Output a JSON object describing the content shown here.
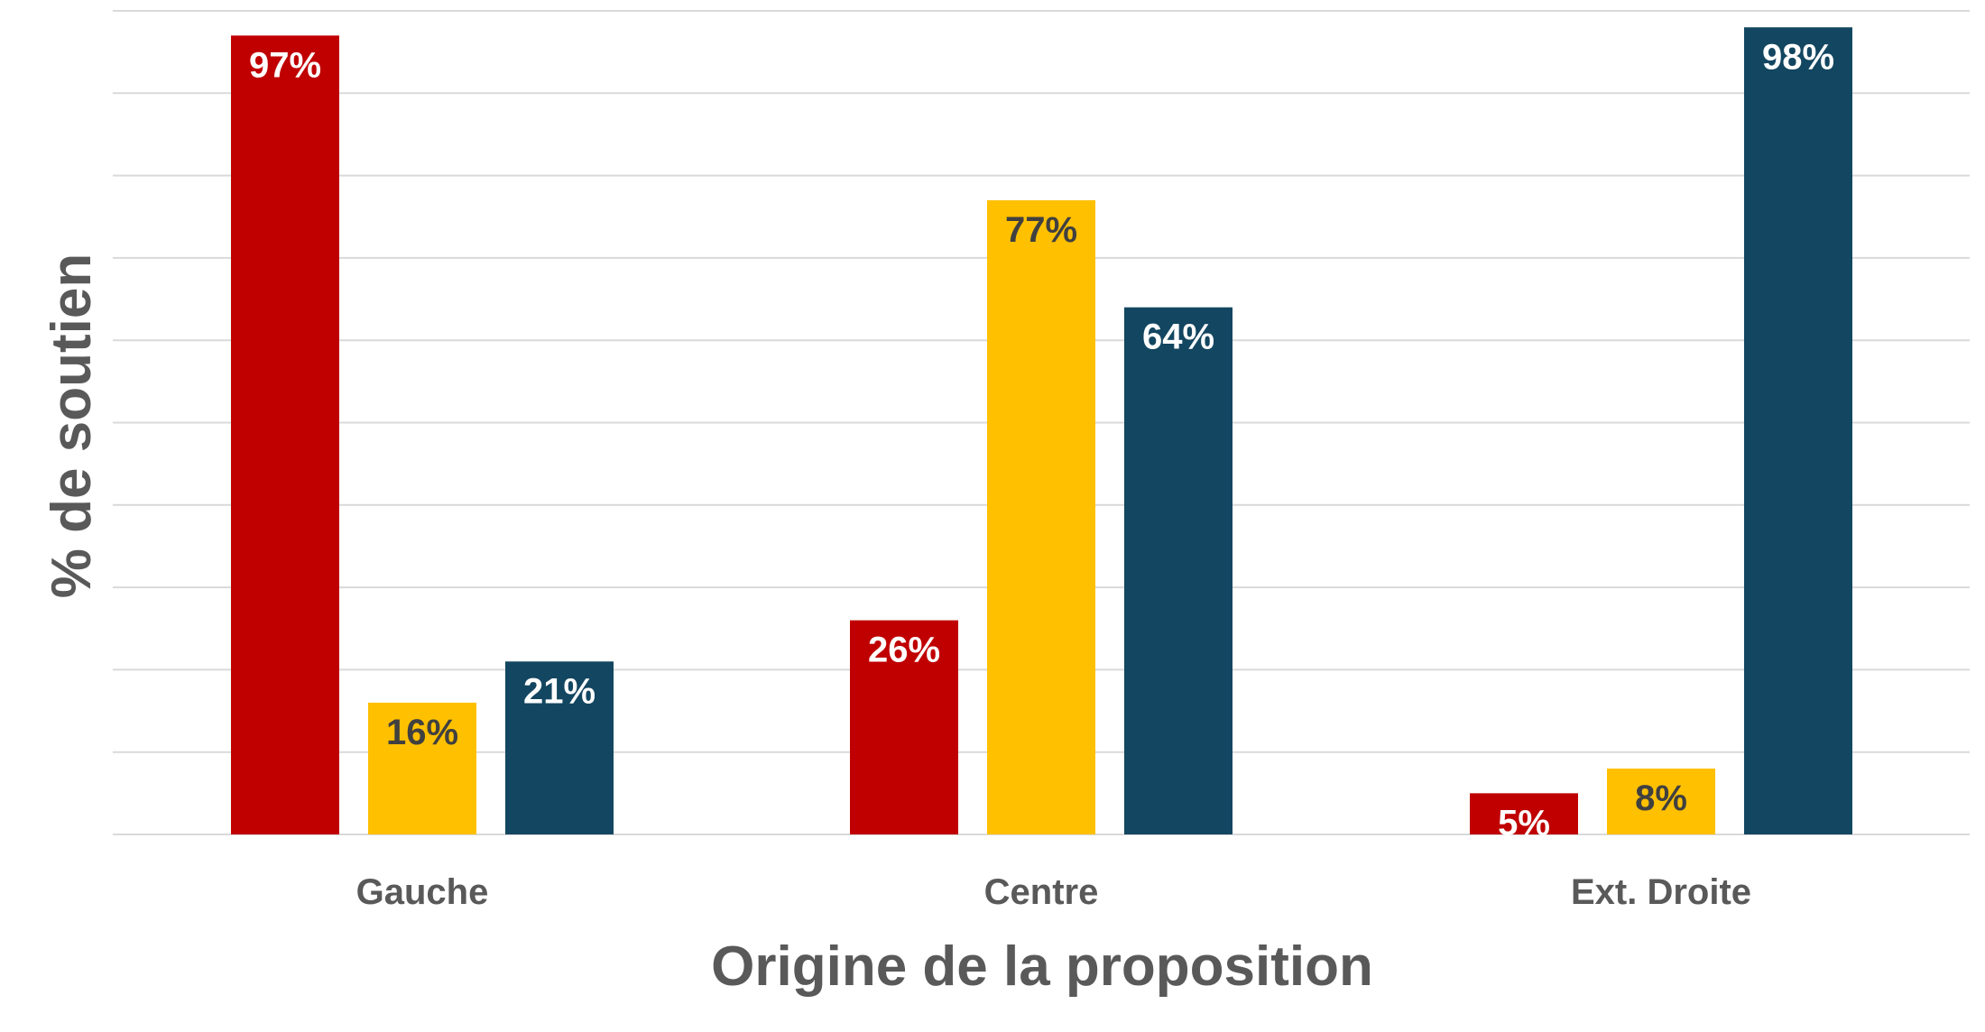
{
  "chart_data": {
    "type": "bar",
    "categories": [
      "Gauche",
      "Centre",
      "Ext. Droite"
    ],
    "series": [
      {
        "values": [
          97,
          26,
          5
        ],
        "color": "#c00000",
        "label_color": "#ffffff"
      },
      {
        "values": [
          16,
          77,
          8
        ],
        "color": "#ffc000",
        "label_color": "#404040"
      },
      {
        "values": [
          21,
          64,
          98
        ],
        "color": "#134660",
        "label_color": "#ffffff"
      }
    ],
    "data_labels": [
      [
        "97%",
        "26%",
        "5%"
      ],
      [
        "16%",
        "77%",
        "8%"
      ],
      [
        "21%",
        "64%",
        "98%"
      ]
    ],
    "xlabel": "Origine de la proposition",
    "ylabel": "% de soutien",
    "ylim": [
      0,
      100
    ],
    "grid": true,
    "legend": "none"
  }
}
